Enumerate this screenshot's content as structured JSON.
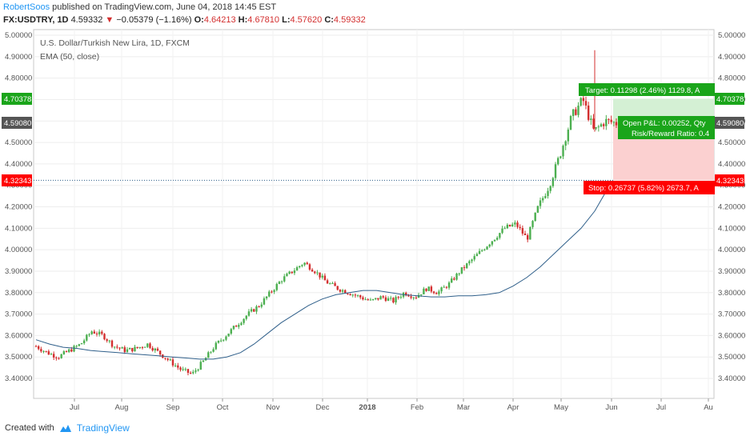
{
  "header": {
    "author": "RobertSoos",
    "published": "published on TradingView.com, June 04, 2018 14:45 EST",
    "symbol": "FX:USDTRY, 1D",
    "last": "4.59332",
    "change": "−0.05379 (−1.16%)",
    "o_label": "O:",
    "o_value": "4.64213",
    "h_label": "H:",
    "h_value": "4.67810",
    "l_label": "L:",
    "l_value": "4.57620",
    "c_label": "C:",
    "c_value": "4.59332"
  },
  "legend": {
    "instrument": "U.S. Dollar/Turkish New Lira, 1D, FXCM",
    "indicator": "EMA (50, close)"
  },
  "position": {
    "target_label": "Target: 0.11298 (2.46%) 1129.8, A",
    "pnl_label": "Open P&L: 0.00252, Qty",
    "rr_label": "Risk/Reward Ratio: 0.4",
    "stop_label": "Stop: 0.26737 (5.82%) 2673.7, A"
  },
  "price_tags": {
    "target": "4.70378",
    "current": "4.59080",
    "stop": "4.32343"
  },
  "footer": {
    "created_with": "Created with",
    "brand": "TradingView"
  },
  "colors": {
    "up": "#4caf50",
    "down": "#d32f2f",
    "ema": "#2f5f8a",
    "target_tag": "#1aa51a",
    "stop_tag": "#ff0000",
    "current_tag": "#555555"
  },
  "chart_data": {
    "type": "candlestick",
    "symbol": "FX:USDTRY",
    "timeframe": "1D",
    "ylim": [
      3.35,
      5.0
    ],
    "y_ticks": [
      "5.00000",
      "4.90000",
      "4.80000",
      "4.70000",
      "4.60000",
      "4.50000",
      "4.40000",
      "4.30000",
      "4.20000",
      "4.10000",
      "4.00000",
      "3.90000",
      "3.80000",
      "3.70000",
      "3.60000",
      "3.50000",
      "3.40000"
    ],
    "x_ticks": [
      "Jul",
      "Aug",
      "Sep",
      "Oct",
      "Nov",
      "Dec",
      "2018",
      "Feb",
      "Mar",
      "Apr",
      "May",
      "Jun",
      "Jul",
      "Au"
    ],
    "series": [
      {
        "name": "EMA (50, close)",
        "values": [
          3.58,
          3.56,
          3.545,
          3.54,
          3.53,
          3.525,
          3.52,
          3.515,
          3.51,
          3.505,
          3.5,
          3.495,
          3.49,
          3.49,
          3.5,
          3.52,
          3.56,
          3.61,
          3.66,
          3.7,
          3.74,
          3.77,
          3.79,
          3.8,
          3.81,
          3.81,
          3.8,
          3.79,
          3.785,
          3.78,
          3.78,
          3.785,
          3.785,
          3.79,
          3.8,
          3.83,
          3.87,
          3.92,
          3.98,
          4.04,
          4.1,
          4.18,
          4.29
        ]
      }
    ],
    "candles_close_path": [
      3.55,
      3.52,
      3.5,
      3.53,
      3.56,
      3.62,
      3.6,
      3.55,
      3.53,
      3.54,
      3.56,
      3.52,
      3.48,
      3.44,
      3.42,
      3.48,
      3.55,
      3.6,
      3.65,
      3.7,
      3.74,
      3.8,
      3.86,
      3.9,
      3.94,
      3.9,
      3.85,
      3.82,
      3.8,
      3.78,
      3.76,
      3.78,
      3.76,
      3.8,
      3.78,
      3.82,
      3.8,
      3.84,
      3.9,
      3.95,
      4.0,
      4.05,
      4.1,
      4.12,
      4.05,
      4.2,
      4.3,
      4.45,
      4.62,
      4.7,
      4.55,
      4.6,
      4.59
    ],
    "position": {
      "entry": 4.5908,
      "target": 4.70378,
      "stop": 4.32343
    }
  }
}
